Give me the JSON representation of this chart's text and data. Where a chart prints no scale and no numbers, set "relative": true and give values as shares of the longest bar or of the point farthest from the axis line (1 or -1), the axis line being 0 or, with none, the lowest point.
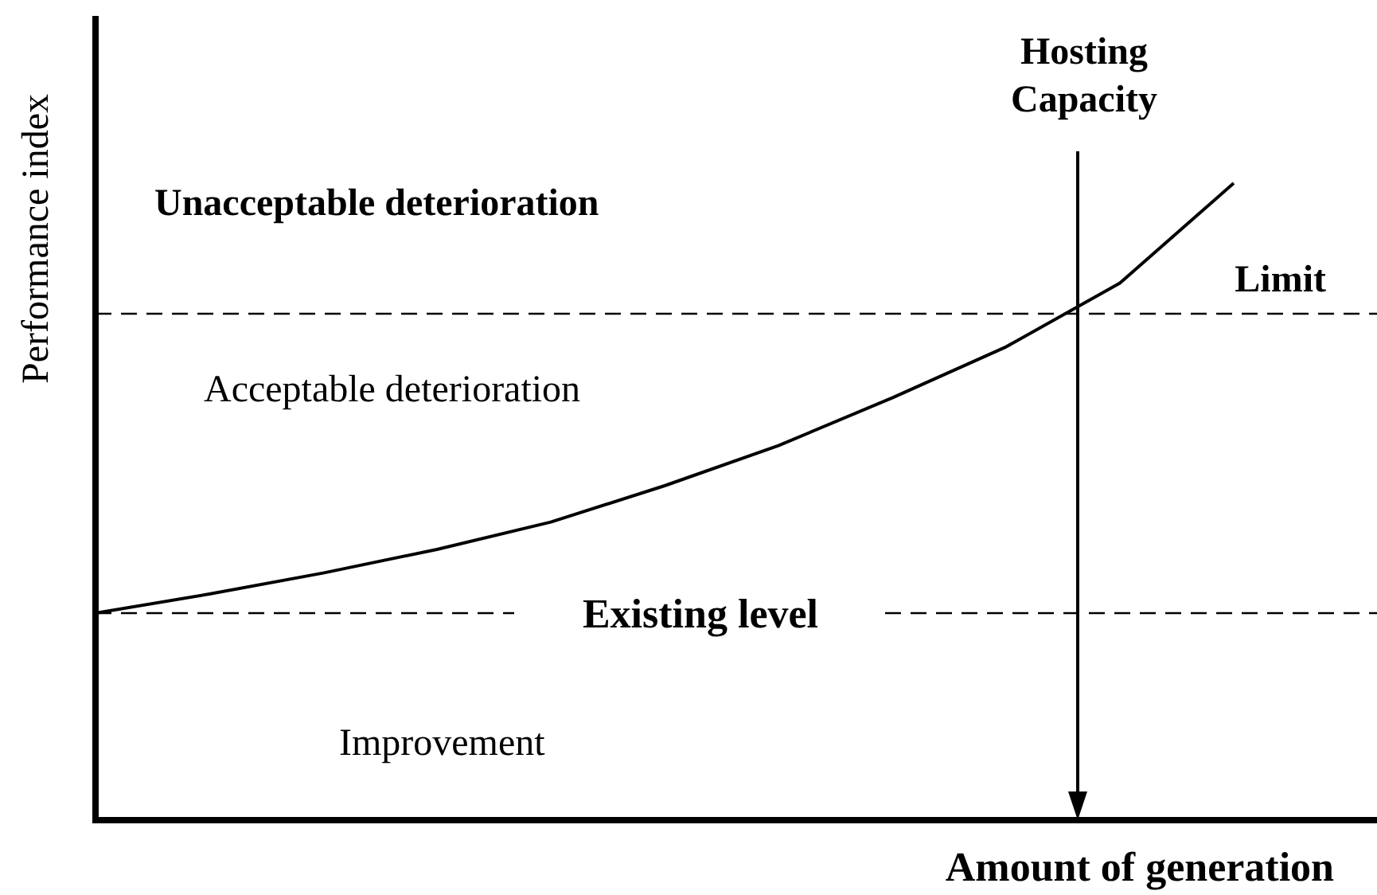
{
  "chart_data": {
    "type": "line",
    "xlabel": "Amount of generation",
    "ylabel": "Performance index",
    "relative": true,
    "categories": [
      null,
      null,
      null,
      null,
      null,
      null,
      null,
      null,
      null,
      null,
      null
    ],
    "series": [
      {
        "color": "#000000",
        "values": [
          0.325,
          0.355,
          0.388,
          0.425,
          0.468,
          0.525,
          0.588,
          0.663,
          0.743,
          0.843,
          1
        ]
      }
    ],
    "line_style": "solid",
    "ref_lines": [
      {
        "axis": "y",
        "value": 0.795,
        "label": "Limit",
        "line_style": "dashed",
        "color": "#000000"
      },
      {
        "axis": "y",
        "value": 0.325,
        "label": "Existing level",
        "line_style": "dashed",
        "color": "#000000"
      }
    ],
    "annotations": [
      "Unacceptable deterioration",
      "Acceptable deterioration",
      "Improvement",
      "Hosting Capacity"
    ]
  }
}
